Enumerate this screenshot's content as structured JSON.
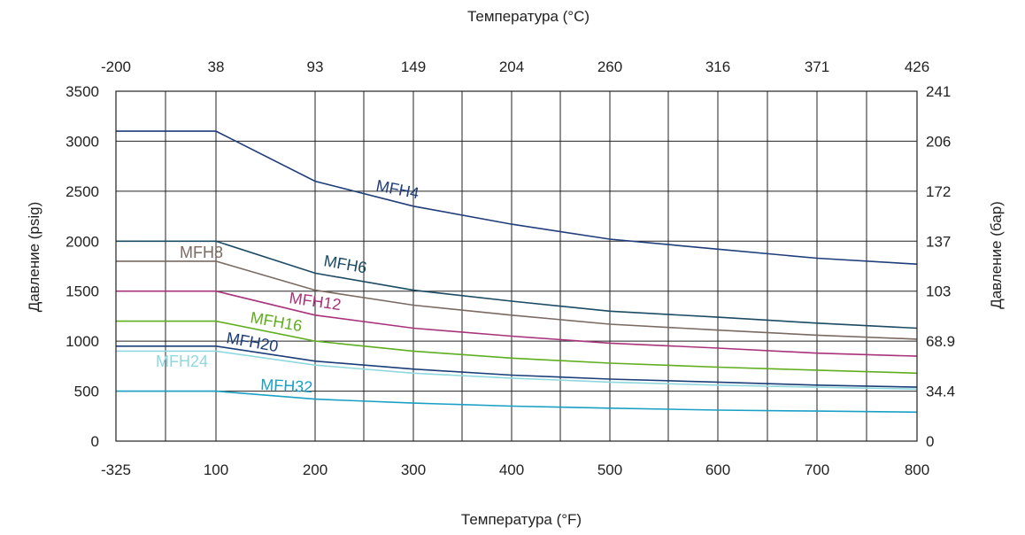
{
  "chart_data": {
    "type": "line",
    "title": "",
    "xlabel_bottom": "Температура (°F)",
    "xlabel_top": "Температура (°C)",
    "ylabel_left": "Давление (psig)",
    "ylabel_right": "Давление (бар)",
    "x_ticks_bottom": [
      "-325",
      "100",
      "200",
      "300",
      "400",
      "500",
      "600",
      "700",
      "800"
    ],
    "x_ticks_top": [
      "-200",
      "38",
      "93",
      "149",
      "204",
      "260",
      "316",
      "371",
      "426"
    ],
    "y_ticks_left": [
      "0",
      "500",
      "1000",
      "1500",
      "2000",
      "2500",
      "3000",
      "3500"
    ],
    "y_ticks_right": [
      "0",
      "34.4",
      "68.9",
      "103",
      "137",
      "172",
      "206",
      "241"
    ],
    "ylim": [
      0,
      3500
    ],
    "grid": true,
    "series": [
      {
        "name": "MFH4",
        "color": "#1f3d7a",
        "x": [
          "-325",
          "100",
          "200",
          "300",
          "400",
          "500",
          "600",
          "700",
          "800"
        ],
        "y": [
          3100,
          3100,
          2600,
          2350,
          2170,
          2020,
          1920,
          1830,
          1770
        ]
      },
      {
        "name": "MFH6",
        "color": "#1b4a63",
        "x": [
          "-325",
          "100",
          "200",
          "300",
          "400",
          "500",
          "600",
          "700",
          "800"
        ],
        "y": [
          2000,
          2000,
          1680,
          1510,
          1400,
          1300,
          1240,
          1180,
          1130
        ]
      },
      {
        "name": "MFH8",
        "color": "#7a6a62",
        "x": [
          "-325",
          "100",
          "200",
          "300",
          "400",
          "500",
          "600",
          "700",
          "800"
        ],
        "y": [
          1800,
          1800,
          1510,
          1360,
          1260,
          1170,
          1110,
          1060,
          1020
        ]
      },
      {
        "name": "MFH12",
        "color": "#a8337a",
        "x": [
          "-325",
          "100",
          "200",
          "300",
          "400",
          "500",
          "600",
          "700",
          "800"
        ],
        "y": [
          1500,
          1500,
          1260,
          1130,
          1050,
          980,
          930,
          880,
          850
        ]
      },
      {
        "name": "MFH16",
        "color": "#5fae1e",
        "x": [
          "-325",
          "100",
          "200",
          "300",
          "400",
          "500",
          "600",
          "700",
          "800"
        ],
        "y": [
          1200,
          1200,
          1000,
          900,
          830,
          780,
          740,
          710,
          680
        ]
      },
      {
        "name": "MFH20",
        "color": "#1a3e78",
        "x": [
          "-325",
          "100",
          "200",
          "300",
          "400",
          "500",
          "600",
          "700",
          "800"
        ],
        "y": [
          950,
          950,
          800,
          720,
          660,
          620,
          590,
          560,
          540
        ]
      },
      {
        "name": "MFH24",
        "color": "#8fd8de",
        "x": [
          "-325",
          "100",
          "200",
          "300",
          "400",
          "500",
          "600",
          "700",
          "800"
        ],
        "y": [
          900,
          900,
          760,
          680,
          630,
          590,
          560,
          540,
          520
        ]
      },
      {
        "name": "MFH32",
        "color": "#1aa0c4",
        "x": [
          "-325",
          "100",
          "200",
          "300",
          "400",
          "500",
          "600",
          "700",
          "800"
        ],
        "y": [
          500,
          500,
          420,
          380,
          350,
          330,
          310,
          300,
          290
        ]
      }
    ]
  }
}
